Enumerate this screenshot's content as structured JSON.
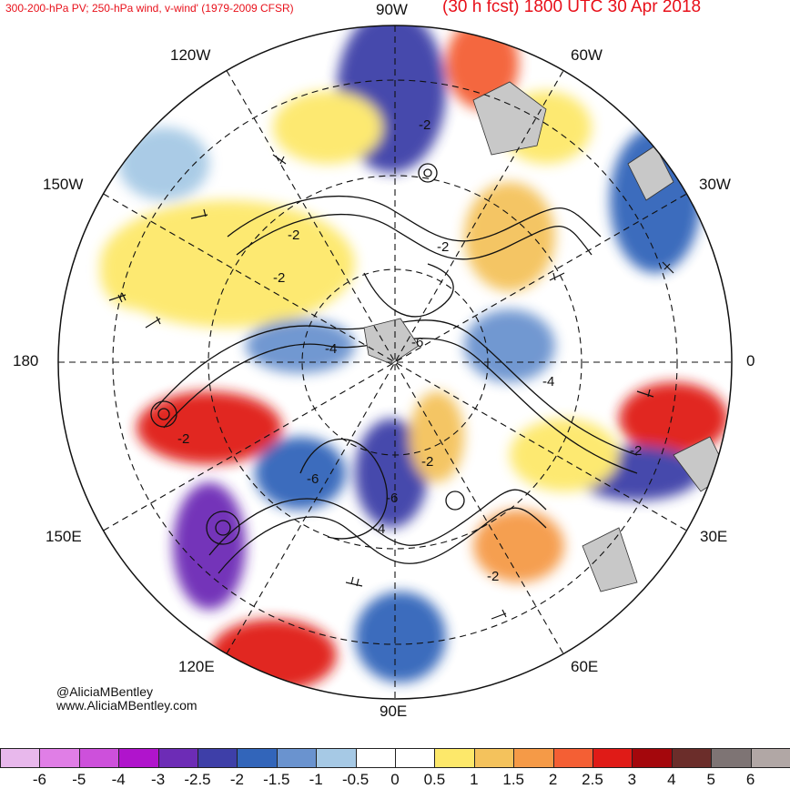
{
  "header": {
    "left_title": "300-200-hPa PV; 250-hPa wind, v-wind' (1979-2009 CFSR)",
    "right_title": "(30 h fcst) 1800 UTC 30 Apr 2018"
  },
  "longitude_labels": {
    "w90": "90W",
    "w120": "120W",
    "w60": "60W",
    "w150": "150W",
    "w30": "30W",
    "lon180": "180",
    "lon0": "0",
    "e150": "150E",
    "e30": "30E",
    "e120": "120E",
    "e60": "60E",
    "e90": "90E"
  },
  "contour_labels": [
    "-2",
    "-2",
    "-2",
    "-2",
    "-4",
    "-6",
    "-4",
    "-2",
    "-2",
    "-6",
    "-2",
    "-6",
    "-4",
    "-2"
  ],
  "credits": {
    "handle": "@AliciaMBentley",
    "site": "www.AliciaMBentley.com"
  },
  "colorbar": {
    "colors": [
      "#e8b8ec",
      "#e07ee6",
      "#cd50db",
      "#b014cc",
      "#6d2cb6",
      "#3e3fa8",
      "#3265ba",
      "#6a93cf",
      "#a6c9e5",
      "#ffffff",
      "#ffffff",
      "#fde86a",
      "#f4c25c",
      "#f59a47",
      "#f45f34",
      "#e01b17",
      "#a4070c",
      "#6b2d2a",
      "#7e7474",
      "#b1a7a5"
    ],
    "ticks": [
      "-6",
      "-5",
      "-4",
      "-3",
      "-2.5",
      "-2",
      "-1.5",
      "-1",
      "-0.5",
      "0",
      "0.5",
      "1",
      "1.5",
      "2",
      "2.5",
      "3",
      "4",
      "5",
      "6"
    ]
  }
}
